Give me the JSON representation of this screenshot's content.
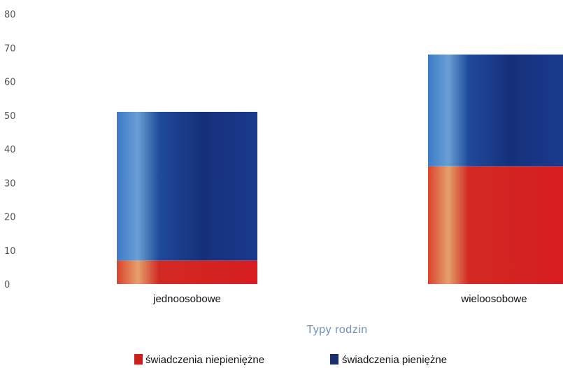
{
  "chart_data": {
    "type": "bar",
    "stacked": true,
    "categories": [
      "jednoosobowe",
      "wieloosobowe"
    ],
    "series": [
      {
        "name": "świadczenia niepieniężne",
        "color": "#cc1f1f",
        "values": [
          7,
          35
        ]
      },
      {
        "name": "świadczenia pieniężne",
        "color": "#1a2f6e",
        "values": [
          44,
          33
        ]
      }
    ],
    "xlabel": "Typy rodzin",
    "ylabel": "",
    "ylim": [
      0,
      80
    ],
    "yticks": [
      0,
      10,
      20,
      30,
      40,
      50,
      60,
      70,
      80
    ],
    "grid": false,
    "legend_position": "bottom"
  }
}
